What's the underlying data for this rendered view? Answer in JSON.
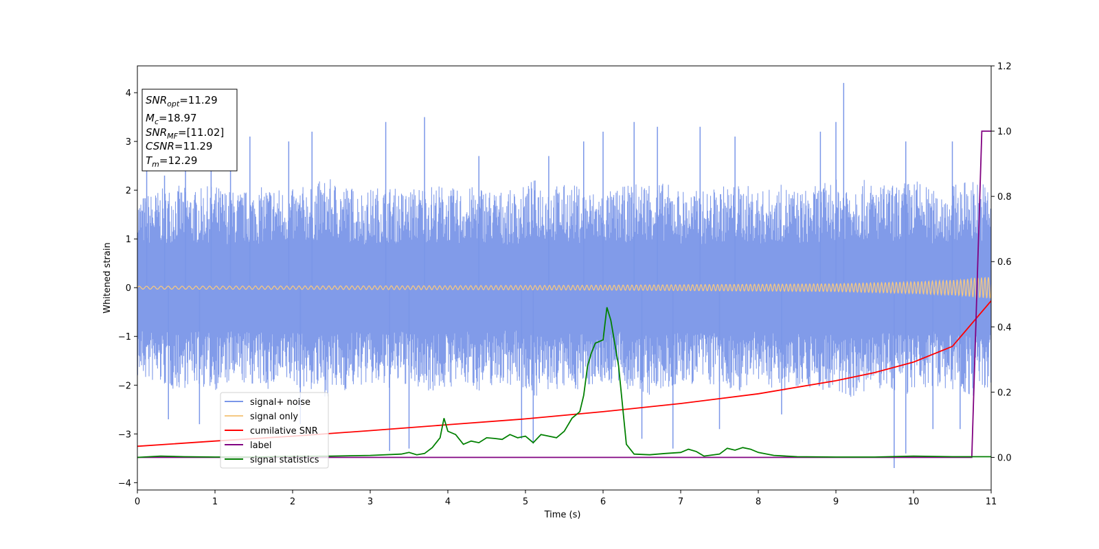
{
  "chart_data": {
    "type": "line",
    "xlabel": "Time (s)",
    "ylabel_left": "Whitened strain",
    "xlim": [
      0,
      11
    ],
    "ylim_left": [
      -4.15,
      4.55
    ],
    "ylim_right": [
      -0.1,
      1.2
    ],
    "x_ticks": [
      "0",
      "1",
      "2",
      "3",
      "4",
      "5",
      "6",
      "7",
      "8",
      "9",
      "10",
      "11"
    ],
    "y_left_ticks": [
      "4",
      "3",
      "2",
      "1",
      "0",
      "−1",
      "−2",
      "−3",
      "−4"
    ],
    "y_right_ticks": [
      "0.0",
      "0.2",
      "0.4",
      "0.6",
      "0.8",
      "1.0",
      "1.2"
    ],
    "grid": false,
    "legend_position": "lower-left",
    "legend": [
      {
        "label": "signal+ noise",
        "color": "#7a96e8"
      },
      {
        "label": "signal only",
        "color": "#f5c882"
      },
      {
        "label": "cumilative SNR",
        "color": "#ff0000"
      },
      {
        "label": "label",
        "color": "#800080"
      },
      {
        "label": "signal statistics",
        "color": "#008000"
      }
    ],
    "annotation": {
      "lines": [
        {
          "base": "SNR",
          "sub": "opt",
          "value": "=11.29"
        },
        {
          "base": "M",
          "sub": "c",
          "value": "=18.97"
        },
        {
          "base": "SNR",
          "sub": "MF",
          "value": "=[11.02]"
        },
        {
          "base": "CSNR",
          "sub": "",
          "value": "=11.29"
        },
        {
          "base": "T",
          "sub": "m",
          "value": "=12.29"
        }
      ]
    },
    "series": [
      {
        "name": "signal+ noise",
        "axis": "left",
        "color": "#7a96e8",
        "note_envelope": "dense noise band",
        "band_upper": [
          1.5,
          1.6,
          1.7,
          1.6,
          1.7,
          1.6,
          1.6,
          1.7,
          1.6,
          1.7,
          1.8,
          1.7,
          1.6,
          1.7,
          1.6,
          1.7,
          1.7,
          1.6,
          1.7,
          1.6,
          1.6,
          1.8,
          1.7,
          1.7,
          1.6,
          1.6,
          1.7,
          1.8,
          1.7,
          1.6,
          1.6,
          1.7,
          1.7,
          1.6,
          1.7,
          1.6,
          1.7,
          1.8,
          1.8,
          1.7,
          1.7,
          1.8,
          1.6,
          1.7,
          1.8,
          1.7
        ],
        "band_lower": [
          -1.5,
          -1.6,
          -1.7,
          -1.6,
          -1.7,
          -1.6,
          -1.6,
          -1.7,
          -1.6,
          -1.7,
          -1.8,
          -1.7,
          -1.6,
          -1.7,
          -1.6,
          -1.7,
          -1.7,
          -1.6,
          -1.7,
          -1.6,
          -1.6,
          -1.8,
          -1.7,
          -1.7,
          -1.6,
          -1.6,
          -1.7,
          -1.8,
          -1.7,
          -1.6,
          -1.6,
          -1.7,
          -1.7,
          -1.6,
          -1.7,
          -1.6,
          -1.7,
          -1.8,
          -1.8,
          -1.7,
          -1.7,
          -1.8,
          -1.6,
          -1.7,
          -1.8,
          -1.7
        ],
        "peaks": [
          [
            0.12,
            3.0
          ],
          [
            0.35,
            2.3
          ],
          [
            0.62,
            2.9
          ],
          [
            0.95,
            3.2
          ],
          [
            1.2,
            2.8
          ],
          [
            1.45,
            3.1
          ],
          [
            1.95,
            3.0
          ],
          [
            2.25,
            3.2
          ],
          [
            3.2,
            3.4
          ],
          [
            3.7,
            3.5
          ],
          [
            4.4,
            2.7
          ],
          [
            5.3,
            2.7
          ],
          [
            5.75,
            3.0
          ],
          [
            6.0,
            3.2
          ],
          [
            6.4,
            3.4
          ],
          [
            6.7,
            3.3
          ],
          [
            7.25,
            3.3
          ],
          [
            7.7,
            3.1
          ],
          [
            8.8,
            3.2
          ],
          [
            9.0,
            3.4
          ],
          [
            9.1,
            4.2
          ],
          [
            9.9,
            3.0
          ],
          [
            10.5,
            3.0
          ]
        ],
        "troughs": [
          [
            0.4,
            -2.7
          ],
          [
            0.8,
            -2.8
          ],
          [
            2.1,
            -2.8
          ],
          [
            3.25,
            -3.35
          ],
          [
            3.5,
            -3.3
          ],
          [
            4.95,
            -3.1
          ],
          [
            5.1,
            -3.2
          ],
          [
            6.5,
            -3.1
          ],
          [
            6.9,
            -3.3
          ],
          [
            7.5,
            -2.9
          ],
          [
            8.3,
            -2.6
          ],
          [
            9.75,
            -3.7
          ],
          [
            9.9,
            -3.4
          ],
          [
            10.25,
            -2.9
          ],
          [
            10.6,
            -2.9
          ]
        ]
      },
      {
        "name": "signal only",
        "axis": "left",
        "color": "#f5c882",
        "x": [
          0,
          2,
          4,
          6,
          7,
          8,
          9,
          9.5,
          10,
          10.3,
          10.6,
          10.8,
          11.0
        ],
        "amplitude": [
          0.03,
          0.035,
          0.04,
          0.05,
          0.06,
          0.07,
          0.08,
          0.1,
          0.12,
          0.14,
          0.16,
          0.2,
          0.22
        ]
      },
      {
        "name": "cumilative SNR",
        "axis": "right",
        "color": "#ff0000",
        "x": [
          0,
          1,
          2,
          3,
          4,
          5,
          6,
          7,
          8,
          9,
          9.5,
          10,
          10.5,
          11
        ],
        "y": [
          0.034,
          0.05,
          0.065,
          0.082,
          0.1,
          0.118,
          0.14,
          0.165,
          0.195,
          0.235,
          0.26,
          0.292,
          0.34,
          0.48
        ]
      },
      {
        "name": "label",
        "axis": "right",
        "color": "#800080",
        "x": [
          0,
          10.75,
          10.88,
          11.0
        ],
        "y": [
          0,
          0,
          1.0,
          1.0
        ]
      },
      {
        "name": "signal statistics",
        "axis": "right",
        "color": "#008000",
        "x": [
          0,
          0.3,
          0.6,
          1.0,
          1.5,
          2.0,
          2.5,
          3.0,
          3.4,
          3.5,
          3.6,
          3.7,
          3.8,
          3.9,
          3.95,
          4.0,
          4.1,
          4.2,
          4.3,
          4.4,
          4.5,
          4.6,
          4.7,
          4.8,
          4.9,
          5.0,
          5.1,
          5.2,
          5.4,
          5.5,
          5.6,
          5.7,
          5.75,
          5.8,
          5.85,
          5.9,
          6.0,
          6.05,
          6.1,
          6.2,
          6.3,
          6.4,
          6.6,
          6.8,
          7.0,
          7.1,
          7.2,
          7.3,
          7.5,
          7.6,
          7.7,
          7.8,
          7.9,
          8.0,
          8.2,
          8.5,
          9.0,
          9.5,
          10.0,
          10.5,
          10.75,
          11.0
        ],
        "y": [
          0.0,
          0.004,
          0.002,
          0.001,
          0.001,
          0.003,
          0.004,
          0.006,
          0.01,
          0.015,
          0.008,
          0.012,
          0.03,
          0.06,
          0.12,
          0.08,
          0.07,
          0.04,
          0.05,
          0.045,
          0.06,
          0.058,
          0.055,
          0.07,
          0.06,
          0.065,
          0.045,
          0.07,
          0.06,
          0.08,
          0.12,
          0.14,
          0.19,
          0.28,
          0.32,
          0.35,
          0.36,
          0.46,
          0.42,
          0.28,
          0.04,
          0.01,
          0.008,
          0.012,
          0.015,
          0.025,
          0.018,
          0.004,
          0.01,
          0.028,
          0.022,
          0.03,
          0.025,
          0.015,
          0.006,
          0.002,
          0.001,
          0.001,
          0.004,
          0.002,
          0.002,
          0.002
        ]
      }
    ]
  }
}
